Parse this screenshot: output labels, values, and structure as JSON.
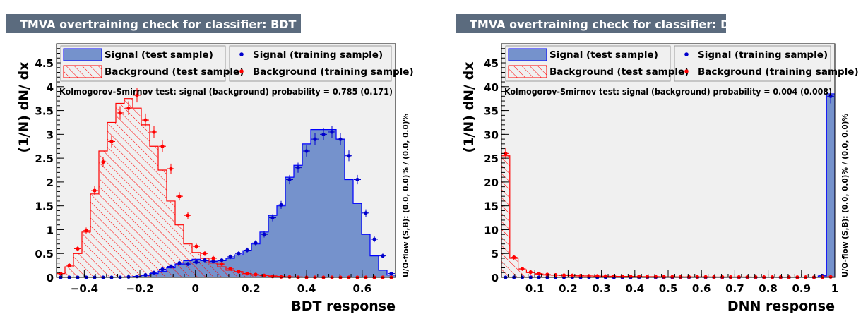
{
  "chart_data": [
    {
      "type": "histogram",
      "title": "TMVA overtraining check for classifier: BDT",
      "xlabel": "BDT response",
      "ylabel": "(1/N) dN/ dx",
      "overflow_label": "U/O-flow (S,B): (0.0, 0.0)% / (0.0, 0.0)%",
      "ks_text": "Kolmogorov-Smirnov test: signal (background) probability = 0.785 (0.171)",
      "legend": {
        "signal_test": "Signal (test sample)",
        "background_test": "Background (test sample)",
        "signal_train": "Signal (training sample)",
        "background_train": "Background (training sample)"
      },
      "xlim": [
        -0.5,
        0.72
      ],
      "ylim": [
        0,
        4.9
      ],
      "xticks": [
        -0.4,
        -0.2,
        0,
        0.2,
        0.4,
        0.6
      ],
      "xtick_labels": [
        "−0.4",
        "−0.2",
        "0",
        "0.2",
        "0.4",
        "0.6"
      ],
      "yticks": [
        0,
        0.5,
        1,
        1.5,
        2,
        2.5,
        3,
        3.5,
        4,
        4.5
      ],
      "ytick_labels": [
        "0",
        "0.5",
        "1",
        "1.5",
        "2",
        "2.5",
        "3",
        "3.5",
        "4",
        "4.5"
      ],
      "bins": 40,
      "signal_test": [
        0,
        0,
        0,
        0,
        0,
        0,
        0,
        0,
        0.01,
        0.02,
        0.04,
        0.08,
        0.13,
        0.2,
        0.28,
        0.35,
        0.38,
        0.35,
        0.33,
        0.35,
        0.4,
        0.47,
        0.56,
        0.7,
        0.95,
        1.3,
        1.5,
        2.1,
        2.35,
        2.8,
        3.1,
        3.1,
        3.1,
        2.9,
        2.05,
        1.55,
        0.9,
        0.45,
        0.15,
        0.05
      ],
      "background_test": [
        0.08,
        0.22,
        0.5,
        0.95,
        1.75,
        2.65,
        3.25,
        3.65,
        3.75,
        3.55,
        3.2,
        2.75,
        2.25,
        1.6,
        1.1,
        0.7,
        0.52,
        0.4,
        0.3,
        0.22,
        0.15,
        0.12,
        0.08,
        0.05,
        0.04,
        0.03,
        0.02,
        0.01,
        0.01,
        0,
        0,
        0,
        0,
        0,
        0,
        0,
        0,
        0,
        0,
        0
      ],
      "signal_train": [
        0,
        0,
        0,
        0,
        0,
        0,
        0,
        0,
        0.01,
        0.02,
        0.05,
        0.1,
        0.17,
        0.23,
        0.3,
        0.28,
        0.32,
        0.36,
        0.34,
        0.36,
        0.43,
        0.5,
        0.57,
        0.72,
        0.9,
        1.25,
        1.52,
        2.05,
        2.3,
        2.65,
        2.9,
        3.0,
        3.05,
        2.9,
        2.55,
        2.05,
        1.35,
        0.8,
        0.45,
        0.08
      ],
      "background_train": [
        0.08,
        0.25,
        0.6,
        0.98,
        1.82,
        2.42,
        2.85,
        3.45,
        3.55,
        3.82,
        3.3,
        3.05,
        2.75,
        2.28,
        1.7,
        1.3,
        0.65,
        0.5,
        0.4,
        0.28,
        0.18,
        0.12,
        0.08,
        0.06,
        0.04,
        0.02,
        0.01,
        0.01,
        0,
        0,
        0,
        0,
        0,
        0,
        0,
        0,
        0,
        0,
        0,
        0
      ]
    },
    {
      "type": "histogram",
      "title": "TMVA overtraining check for classifier: DNN",
      "xlabel": "DNN response",
      "ylabel": "(1/N) dN/ dx",
      "overflow_label": "U/O-flow (S,B): (0.0, 0.0)% / (0.0, 0.0)%",
      "ks_text": "Kolmogorov-Smirnov test: signal (background) probability = 0.004 (0.008)",
      "legend": {
        "signal_test": "Signal (test sample)",
        "background_test": "Background (test sample)",
        "signal_train": "Signal (training sample)",
        "background_train": "Background (training sample)"
      },
      "xlim": [
        0,
        1
      ],
      "ylim": [
        0,
        49
      ],
      "xticks": [
        0.1,
        0.2,
        0.3,
        0.4,
        0.5,
        0.6,
        0.7,
        0.8,
        0.9,
        1
      ],
      "xtick_labels": [
        "0.1",
        "0.2",
        "0.3",
        "0.4",
        "0.5",
        "0.6",
        "0.7",
        "0.8",
        "0.9",
        "1"
      ],
      "yticks": [
        0,
        5,
        10,
        15,
        20,
        25,
        30,
        35,
        40,
        45
      ],
      "ytick_labels": [
        "0",
        "5",
        "10",
        "15",
        "20",
        "25",
        "30",
        "35",
        "40",
        "45"
      ],
      "bins": 40,
      "signal_test": [
        0,
        0,
        0,
        0,
        0,
        0,
        0,
        0,
        0,
        0,
        0,
        0,
        0,
        0,
        0,
        0,
        0,
        0,
        0,
        0,
        0,
        0,
        0,
        0,
        0,
        0,
        0,
        0,
        0,
        0,
        0,
        0,
        0,
        0,
        0,
        0,
        0,
        0,
        0.3,
        38.5
      ],
      "background_test": [
        25.5,
        4.0,
        1.6,
        1.0,
        0.7,
        0.5,
        0.45,
        0.4,
        0.35,
        0.3,
        0.3,
        0.25,
        0.25,
        0.2,
        0.2,
        0.2,
        0.15,
        0.15,
        0.15,
        0.12,
        0.12,
        0.1,
        0.1,
        0.1,
        0.1,
        0.08,
        0.08,
        0.08,
        0.07,
        0.07,
        0.06,
        0.06,
        0.05,
        0.05,
        0.05,
        0.05,
        0.04,
        0.04,
        0.04,
        0.1
      ],
      "signal_train": [
        0,
        0,
        0,
        0,
        0,
        0,
        0,
        0,
        0,
        0,
        0,
        0,
        0,
        0,
        0,
        0,
        0,
        0,
        0,
        0,
        0,
        0,
        0,
        0,
        0,
        0,
        0,
        0,
        0,
        0,
        0,
        0,
        0,
        0,
        0,
        0,
        0,
        0,
        0.35,
        38.0
      ],
      "background_train": [
        26.0,
        4.2,
        1.8,
        1.1,
        0.8,
        0.6,
        0.5,
        0.45,
        0.4,
        0.35,
        0.3,
        0.3,
        0.25,
        0.25,
        0.2,
        0.2,
        0.18,
        0.15,
        0.15,
        0.12,
        0.12,
        0.1,
        0.1,
        0.1,
        0.09,
        0.08,
        0.08,
        0.07,
        0.07,
        0.06,
        0.06,
        0.05,
        0.05,
        0.05,
        0.04,
        0.04,
        0.04,
        0.03,
        0.03,
        0.1
      ]
    }
  ],
  "colors": {
    "title_bar": "#5b6b7e",
    "title_text": "#ffffff",
    "frame_bg": "#f0f0f0",
    "signal_fill": "#7592cc",
    "signal_line": "#0000ff",
    "signal_marker": "#0000cc",
    "background_line": "#ff0000",
    "background_marker": "#ff0000",
    "axis": "#000000"
  }
}
